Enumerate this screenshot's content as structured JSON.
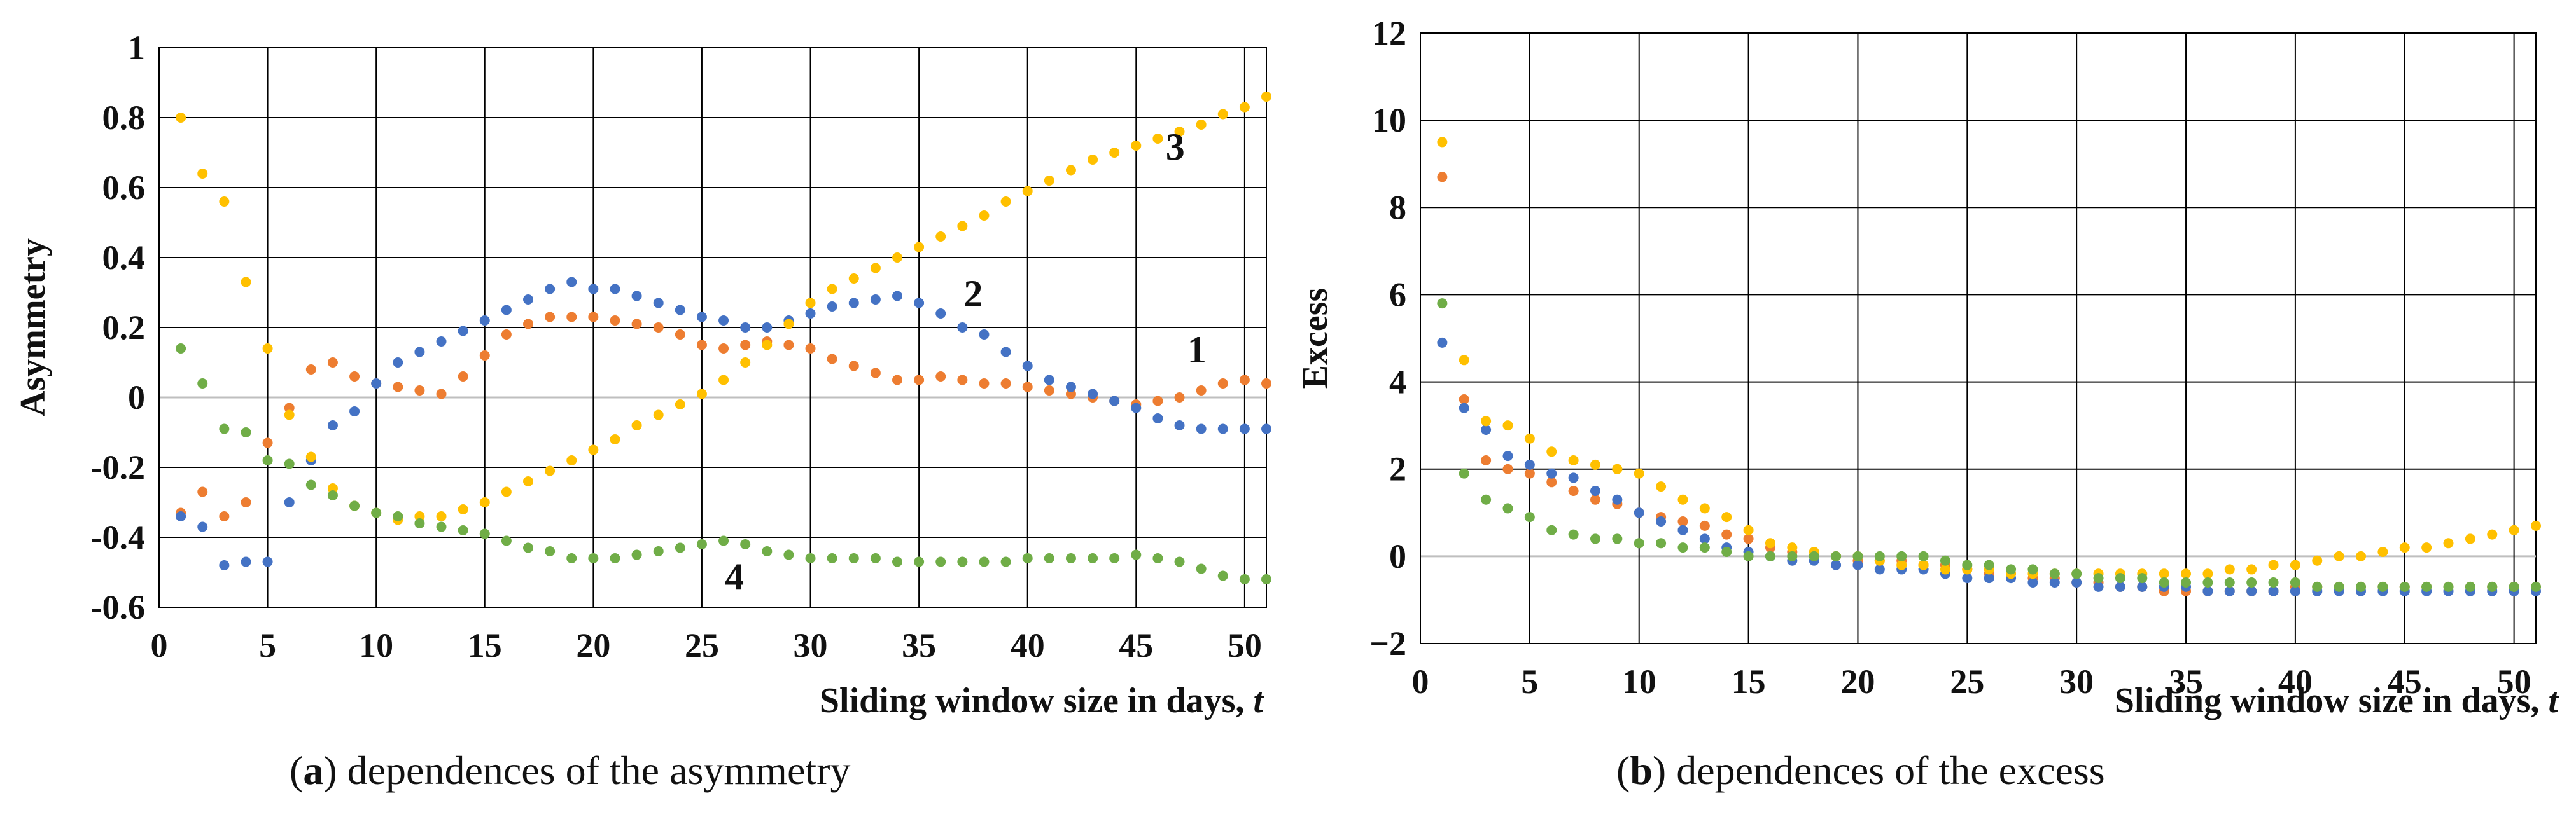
{
  "colors": {
    "series1": "#ED7D31",
    "series2": "#4472C4",
    "series3": "#FFC000",
    "series4": "#70AD47",
    "grid": "#000000",
    "zero_line": "#BFBFBF"
  },
  "captions": {
    "a": {
      "label": "a",
      "open": "(",
      "close": ")",
      "text": " dependences of the asymmetry"
    },
    "b": {
      "label": "b",
      "open": "(",
      "close": ")",
      "text": " dependences of the excess"
    }
  },
  "chart_data": [
    {
      "id": "a",
      "type": "scatter",
      "title": "",
      "ylabel": "Asymmetry",
      "xlabel": "Sliding window size in days, ",
      "xlabel_var": "t",
      "xlim": [
        0,
        51
      ],
      "ylim": [
        -0.6,
        1.0
      ],
      "xticks": [
        0,
        5,
        10,
        15,
        20,
        25,
        30,
        35,
        40,
        45,
        50
      ],
      "xtick_labels": [
        "0",
        "5",
        "10",
        "15",
        "20",
        "25",
        "30",
        "35",
        "40",
        "45",
        "50"
      ],
      "yticks": [
        -0.6,
        -0.4,
        -0.2,
        0,
        0.2,
        0.4,
        0.6,
        0.8,
        1.0
      ],
      "ytick_labels": [
        "-0.6",
        "-0.4",
        "-0.2",
        "0",
        "0.2",
        "0.4",
        "0.6",
        "0.8",
        "1"
      ],
      "grid": true,
      "annotations": [
        {
          "text": "1",
          "x": 47.8,
          "y": 0.1
        },
        {
          "text": "2",
          "x": 37.5,
          "y": 0.26
        },
        {
          "text": "3",
          "x": 46.8,
          "y": 0.68
        },
        {
          "text": "4",
          "x": 26.5,
          "y": -0.55
        }
      ],
      "series": [
        {
          "name": "1",
          "color_key": "series1",
          "x": [
            1,
            2,
            3,
            4,
            5,
            6,
            7,
            8,
            9,
            10,
            11,
            12,
            13,
            14,
            15,
            16,
            17,
            18,
            19,
            20,
            21,
            22,
            23,
            24,
            25,
            26,
            27,
            28,
            29,
            30,
            31,
            32,
            33,
            34,
            35,
            36,
            37,
            38,
            39,
            40,
            41,
            42,
            43,
            44,
            45,
            46,
            47,
            48,
            49,
            50,
            51
          ],
          "values": [
            -0.33,
            -0.27,
            -0.34,
            -0.3,
            -0.13,
            -0.03,
            0.08,
            0.1,
            0.06,
            0.04,
            0.03,
            0.02,
            0.01,
            0.06,
            0.12,
            0.18,
            0.21,
            0.23,
            0.23,
            0.23,
            0.22,
            0.21,
            0.2,
            0.18,
            0.15,
            0.14,
            0.15,
            0.16,
            0.15,
            0.14,
            0.11,
            0.09,
            0.07,
            0.05,
            0.05,
            0.06,
            0.05,
            0.04,
            0.04,
            0.03,
            0.02,
            0.01,
            0.0,
            -0.01,
            -0.02,
            -0.01,
            0.0,
            0.02,
            0.04,
            0.05,
            0.04
          ]
        },
        {
          "name": "2",
          "color_key": "series2",
          "x": [
            1,
            2,
            3,
            4,
            5,
            6,
            7,
            8,
            9,
            10,
            11,
            12,
            13,
            14,
            15,
            16,
            17,
            18,
            19,
            20,
            21,
            22,
            23,
            24,
            25,
            26,
            27,
            28,
            29,
            30,
            31,
            32,
            33,
            34,
            35,
            36,
            37,
            38,
            39,
            40,
            41,
            42,
            43,
            44,
            45,
            46,
            47,
            48,
            49,
            50,
            51
          ],
          "values": [
            -0.34,
            -0.37,
            -0.48,
            -0.47,
            -0.47,
            -0.3,
            -0.18,
            -0.08,
            -0.04,
            0.04,
            0.1,
            0.13,
            0.16,
            0.19,
            0.22,
            0.25,
            0.28,
            0.31,
            0.33,
            0.31,
            0.31,
            0.29,
            0.27,
            0.25,
            0.23,
            0.22,
            0.2,
            0.2,
            0.22,
            0.24,
            0.26,
            0.27,
            0.28,
            0.29,
            0.27,
            0.24,
            0.2,
            0.18,
            0.13,
            0.09,
            0.05,
            0.03,
            0.01,
            -0.01,
            -0.03,
            -0.06,
            -0.08,
            -0.09,
            -0.09,
            -0.09,
            -0.09
          ]
        },
        {
          "name": "3",
          "color_key": "series3",
          "x": [
            1,
            2,
            3,
            4,
            5,
            6,
            7,
            8,
            9,
            10,
            11,
            12,
            13,
            14,
            15,
            16,
            17,
            18,
            19,
            20,
            21,
            22,
            23,
            24,
            25,
            26,
            27,
            28,
            29,
            30,
            31,
            32,
            33,
            34,
            35,
            36,
            37,
            38,
            39,
            40,
            41,
            42,
            43,
            44,
            45,
            46,
            47,
            48,
            49,
            50,
            51
          ],
          "values": [
            0.8,
            0.64,
            0.56,
            0.33,
            0.14,
            -0.05,
            -0.17,
            -0.26,
            -0.31,
            -0.33,
            -0.35,
            -0.34,
            -0.34,
            -0.32,
            -0.3,
            -0.27,
            -0.24,
            -0.21,
            -0.18,
            -0.15,
            -0.12,
            -0.08,
            -0.05,
            -0.02,
            0.01,
            0.05,
            0.1,
            0.15,
            0.21,
            0.27,
            0.31,
            0.34,
            0.37,
            0.4,
            0.43,
            0.46,
            0.49,
            0.52,
            0.56,
            0.59,
            0.62,
            0.65,
            0.68,
            0.7,
            0.72,
            0.74,
            0.76,
            0.78,
            0.81,
            0.83,
            0.86
          ]
        },
        {
          "name": "4",
          "color_key": "series4",
          "x": [
            1,
            2,
            3,
            4,
            5,
            6,
            7,
            8,
            9,
            10,
            11,
            12,
            13,
            14,
            15,
            16,
            17,
            18,
            19,
            20,
            21,
            22,
            23,
            24,
            25,
            26,
            27,
            28,
            29,
            30,
            31,
            32,
            33,
            34,
            35,
            36,
            37,
            38,
            39,
            40,
            41,
            42,
            43,
            44,
            45,
            46,
            47,
            48,
            49,
            50,
            51
          ],
          "values": [
            0.14,
            0.04,
            -0.09,
            -0.1,
            -0.18,
            -0.19,
            -0.25,
            -0.28,
            -0.31,
            -0.33,
            -0.34,
            -0.36,
            -0.37,
            -0.38,
            -0.39,
            -0.41,
            -0.43,
            -0.44,
            -0.46,
            -0.46,
            -0.46,
            -0.45,
            -0.44,
            -0.43,
            -0.42,
            -0.41,
            -0.42,
            -0.44,
            -0.45,
            -0.46,
            -0.46,
            -0.46,
            -0.46,
            -0.47,
            -0.47,
            -0.47,
            -0.47,
            -0.47,
            -0.47,
            -0.46,
            -0.46,
            -0.46,
            -0.46,
            -0.46,
            -0.45,
            -0.46,
            -0.47,
            -0.49,
            -0.51,
            -0.52,
            -0.52
          ]
        }
      ]
    },
    {
      "id": "b",
      "type": "scatter",
      "title": "",
      "ylabel": "Excess",
      "xlabel": "Sliding window size in days, ",
      "xlabel_var": "t",
      "xlim": [
        0,
        51
      ],
      "ylim": [
        -2,
        12
      ],
      "xticks": [
        0,
        5,
        10,
        15,
        20,
        25,
        30,
        35,
        40,
        45,
        50
      ],
      "xtick_labels": [
        "0",
        "5",
        "10",
        "15",
        "20",
        "25",
        "30",
        "35",
        "40",
        "45",
        "50"
      ],
      "yticks": [
        -2,
        0,
        2,
        4,
        6,
        8,
        10,
        12
      ],
      "ytick_labels": [
        "−2",
        "0",
        "2",
        "4",
        "6",
        "8",
        "10",
        "12"
      ],
      "grid": true,
      "annotations": [],
      "series": [
        {
          "name": "1",
          "color_key": "series1",
          "x": [
            1,
            2,
            3,
            4,
            5,
            6,
            7,
            8,
            9,
            10,
            11,
            12,
            13,
            14,
            15,
            16,
            17,
            18,
            19,
            20,
            21,
            22,
            23,
            24,
            25,
            26,
            27,
            28,
            29,
            30,
            31,
            32,
            33,
            34,
            35,
            36,
            37,
            38,
            39,
            40,
            41,
            42,
            43,
            44,
            45,
            46,
            47,
            48,
            49,
            50,
            51
          ],
          "values": [
            8.7,
            3.6,
            2.2,
            2.0,
            1.9,
            1.7,
            1.5,
            1.3,
            1.2,
            1.0,
            0.9,
            0.8,
            0.7,
            0.5,
            0.4,
            0.2,
            0.1,
            0.0,
            0.0,
            -0.1,
            -0.1,
            -0.1,
            -0.2,
            -0.2,
            -0.3,
            -0.4,
            -0.4,
            -0.5,
            -0.5,
            -0.6,
            -0.6,
            -0.7,
            -0.7,
            -0.8,
            -0.8,
            -0.8,
            -0.8,
            -0.8,
            -0.8,
            -0.7,
            -0.7,
            -0.7,
            -0.7,
            -0.7,
            -0.7,
            -0.7,
            -0.7,
            -0.7,
            -0.7,
            -0.7,
            -0.7
          ]
        },
        {
          "name": "2",
          "color_key": "series2",
          "x": [
            1,
            2,
            3,
            4,
            5,
            6,
            7,
            8,
            9,
            10,
            11,
            12,
            13,
            14,
            15,
            16,
            17,
            18,
            19,
            20,
            21,
            22,
            23,
            24,
            25,
            26,
            27,
            28,
            29,
            30,
            31,
            32,
            33,
            34,
            35,
            36,
            37,
            38,
            39,
            40,
            41,
            42,
            43,
            44,
            45,
            46,
            47,
            48,
            49,
            50,
            51
          ],
          "values": [
            4.9,
            3.4,
            2.9,
            2.3,
            2.1,
            1.9,
            1.8,
            1.5,
            1.3,
            1.0,
            0.8,
            0.6,
            0.4,
            0.2,
            0.1,
            0.0,
            -0.1,
            -0.1,
            -0.2,
            -0.2,
            -0.3,
            -0.3,
            -0.3,
            -0.4,
            -0.5,
            -0.5,
            -0.5,
            -0.6,
            -0.6,
            -0.6,
            -0.7,
            -0.7,
            -0.7,
            -0.7,
            -0.7,
            -0.8,
            -0.8,
            -0.8,
            -0.8,
            -0.8,
            -0.8,
            -0.8,
            -0.8,
            -0.8,
            -0.8,
            -0.8,
            -0.8,
            -0.8,
            -0.8,
            -0.8,
            -0.8
          ]
        },
        {
          "name": "3",
          "color_key": "series3",
          "x": [
            1,
            2,
            3,
            4,
            5,
            6,
            7,
            8,
            9,
            10,
            11,
            12,
            13,
            14,
            15,
            16,
            17,
            18,
            19,
            20,
            21,
            22,
            23,
            24,
            25,
            26,
            27,
            28,
            29,
            30,
            31,
            32,
            33,
            34,
            35,
            36,
            37,
            38,
            39,
            40,
            41,
            42,
            43,
            44,
            45,
            46,
            47,
            48,
            49,
            50,
            51
          ],
          "values": [
            9.5,
            4.5,
            3.1,
            3.0,
            2.7,
            2.4,
            2.2,
            2.1,
            2.0,
            1.9,
            1.6,
            1.3,
            1.1,
            0.9,
            0.6,
            0.3,
            0.2,
            0.1,
            0.0,
            0.0,
            -0.1,
            -0.2,
            -0.2,
            -0.3,
            -0.3,
            -0.3,
            -0.4,
            -0.4,
            -0.4,
            -0.4,
            -0.4,
            -0.4,
            -0.4,
            -0.4,
            -0.4,
            -0.4,
            -0.3,
            -0.3,
            -0.2,
            -0.2,
            -0.1,
            0.0,
            0.0,
            0.1,
            0.2,
            0.2,
            0.3,
            0.4,
            0.5,
            0.6,
            0.7
          ]
        },
        {
          "name": "4",
          "color_key": "series4",
          "x": [
            1,
            2,
            3,
            4,
            5,
            6,
            7,
            8,
            9,
            10,
            11,
            12,
            13,
            14,
            15,
            16,
            17,
            18,
            19,
            20,
            21,
            22,
            23,
            24,
            25,
            26,
            27,
            28,
            29,
            30,
            31,
            32,
            33,
            34,
            35,
            36,
            37,
            38,
            39,
            40,
            41,
            42,
            43,
            44,
            45,
            46,
            47,
            48,
            49,
            50,
            51
          ],
          "values": [
            5.8,
            1.9,
            1.3,
            1.1,
            0.9,
            0.6,
            0.5,
            0.4,
            0.4,
            0.3,
            0.3,
            0.2,
            0.2,
            0.1,
            0.0,
            0.0,
            0.0,
            0.0,
            0.0,
            0.0,
            0.0,
            0.0,
            0.0,
            -0.1,
            -0.2,
            -0.2,
            -0.3,
            -0.3,
            -0.4,
            -0.4,
            -0.5,
            -0.5,
            -0.5,
            -0.6,
            -0.6,
            -0.6,
            -0.6,
            -0.6,
            -0.6,
            -0.6,
            -0.7,
            -0.7,
            -0.7,
            -0.7,
            -0.7,
            -0.7,
            -0.7,
            -0.7,
            -0.7,
            -0.7,
            -0.7
          ]
        }
      ]
    }
  ]
}
